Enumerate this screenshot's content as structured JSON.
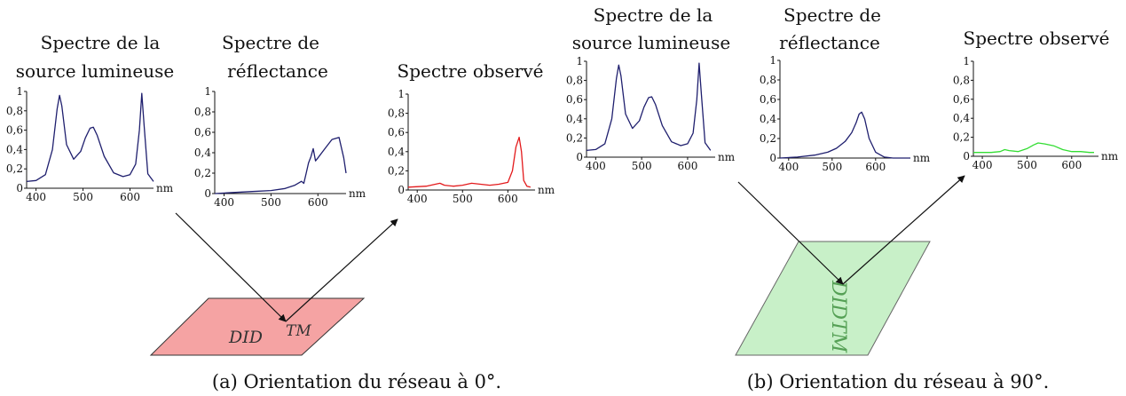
{
  "colors": {
    "source": "#1f1f6e",
    "reflectance": "#1f1f6e",
    "observed_a": "#e31a1c",
    "observed_b": "#33dd33",
    "surface_a_fill": "#f5a3a3",
    "surface_a_stroke": "#333333",
    "surface_b_fill": "#c8f0c8",
    "surface_b_stroke": "#666666"
  },
  "panels": [
    {
      "caption": "(a) Orientation du réseau à 0°.",
      "surface_mark": "DID",
      "surface_superscript": "TM",
      "charts": [
        {
          "id": "a-source",
          "title": [
            "Spectre de la",
            "source lumineuse"
          ],
          "unit": "nm"
        },
        {
          "id": "a-reflect",
          "title": [
            "Spectre de",
            "réflectance"
          ],
          "unit": "nm"
        },
        {
          "id": "a-observed",
          "title": [
            "Spectre observé"
          ],
          "unit": "nm"
        }
      ]
    },
    {
      "caption": "(b) Orientation du réseau à 90°.",
      "surface_mark": "DIDTM",
      "surface_superscript": "",
      "charts": [
        {
          "id": "b-source",
          "title": [
            "Spectre de la",
            "source lumineuse"
          ],
          "unit": "nm"
        },
        {
          "id": "b-reflect",
          "title": [
            "Spectre de",
            "réflectance"
          ],
          "unit": "nm"
        },
        {
          "id": "b-observed",
          "title": [
            "Spectre observé"
          ],
          "unit": "nm"
        }
      ]
    }
  ],
  "chart_data": [
    {
      "id": "a-source",
      "type": "line",
      "xlim": [
        380,
        650
      ],
      "ylim": [
        0,
        1
      ],
      "xticks": [
        400,
        500,
        600
      ],
      "yticks": [
        0,
        0.2,
        0.4,
        0.6,
        0.8,
        1
      ],
      "ytick_labels": [
        "0",
        "0,2",
        "0,4",
        "0,6",
        "0,8",
        "1"
      ],
      "x": [
        380,
        400,
        420,
        435,
        445,
        450,
        455,
        465,
        480,
        495,
        505,
        515,
        522,
        530,
        545,
        565,
        585,
        600,
        612,
        620,
        625,
        630,
        638,
        650
      ],
      "y": [
        0.07,
        0.08,
        0.14,
        0.4,
        0.82,
        0.96,
        0.85,
        0.45,
        0.3,
        0.38,
        0.52,
        0.62,
        0.63,
        0.55,
        0.33,
        0.16,
        0.12,
        0.14,
        0.25,
        0.6,
        0.98,
        0.65,
        0.15,
        0.07
      ]
    },
    {
      "id": "a-reflect",
      "type": "line",
      "xlim": [
        380,
        660
      ],
      "ylim": [
        0,
        1
      ],
      "xticks": [
        400,
        500,
        600
      ],
      "yticks": [
        0,
        0.2,
        0.4,
        0.6,
        0.8,
        1
      ],
      "ytick_labels": [
        "0",
        "0,2",
        "0,4",
        "0,6",
        "0,8",
        "1"
      ],
      "x": [
        380,
        420,
        460,
        500,
        530,
        550,
        565,
        570,
        575,
        580,
        585,
        590,
        595,
        600,
        615,
        630,
        645,
        655,
        660
      ],
      "y": [
        0.0,
        0.01,
        0.02,
        0.03,
        0.05,
        0.08,
        0.12,
        0.1,
        0.2,
        0.3,
        0.36,
        0.44,
        0.32,
        0.35,
        0.44,
        0.53,
        0.55,
        0.35,
        0.2
      ]
    },
    {
      "id": "a-observed",
      "type": "line",
      "xlim": [
        380,
        660
      ],
      "ylim": [
        0,
        1
      ],
      "xticks": [
        400,
        500,
        600
      ],
      "yticks": [
        0,
        0.2,
        0.4,
        0.6,
        0.8,
        1
      ],
      "ytick_labels": [
        "0",
        "0,2",
        "0,4",
        "0,6",
        "0,8",
        "1"
      ],
      "x": [
        380,
        420,
        440,
        450,
        460,
        480,
        500,
        520,
        540,
        560,
        580,
        600,
        610,
        618,
        625,
        630,
        635,
        642,
        650
      ],
      "y": [
        0.03,
        0.04,
        0.06,
        0.07,
        0.05,
        0.04,
        0.05,
        0.07,
        0.06,
        0.05,
        0.06,
        0.08,
        0.2,
        0.45,
        0.55,
        0.4,
        0.1,
        0.04,
        0.03
      ]
    },
    {
      "id": "b-source",
      "type": "line",
      "xlim": [
        380,
        660
      ],
      "ylim": [
        0,
        1
      ],
      "xticks": [
        400,
        500,
        600
      ],
      "yticks": [
        0,
        0.2,
        0.4,
        0.6,
        0.8,
        1
      ],
      "ytick_labels": [
        "0",
        "0,2",
        "0,4",
        "0,6",
        "0,8",
        "1"
      ],
      "x": [
        380,
        400,
        420,
        435,
        445,
        450,
        455,
        465,
        480,
        495,
        505,
        515,
        522,
        530,
        545,
        565,
        585,
        600,
        612,
        620,
        625,
        630,
        638,
        650
      ],
      "y": [
        0.07,
        0.08,
        0.14,
        0.4,
        0.82,
        0.96,
        0.85,
        0.45,
        0.3,
        0.38,
        0.52,
        0.62,
        0.63,
        0.55,
        0.33,
        0.16,
        0.12,
        0.14,
        0.25,
        0.6,
        0.98,
        0.65,
        0.15,
        0.07
      ]
    },
    {
      "id": "b-reflect",
      "type": "line",
      "xlim": [
        380,
        680
      ],
      "ylim": [
        0,
        1
      ],
      "xticks": [
        400,
        500,
        600
      ],
      "yticks": [
        0,
        0.2,
        0.4,
        0.6,
        0.8,
        1
      ],
      "ytick_labels": [
        "0",
        "0,2",
        "0,4",
        "0,6",
        "0,8",
        "1"
      ],
      "x": [
        380,
        420,
        460,
        490,
        510,
        530,
        545,
        555,
        562,
        568,
        575,
        585,
        600,
        620,
        640,
        660,
        680
      ],
      "y": [
        0.0,
        0.01,
        0.03,
        0.06,
        0.1,
        0.17,
        0.26,
        0.36,
        0.45,
        0.47,
        0.4,
        0.2,
        0.06,
        0.01,
        0.0,
        0.0,
        0.0
      ]
    },
    {
      "id": "b-observed",
      "type": "line",
      "xlim": [
        380,
        660
      ],
      "ylim": [
        0,
        1
      ],
      "xticks": [
        400,
        500,
        600
      ],
      "yticks": [
        0,
        0.2,
        0.4,
        0.6,
        0.8,
        1
      ],
      "ytick_labels": [
        "0",
        "0,2",
        "0,4",
        "0,6",
        "0,8",
        "1"
      ],
      "x": [
        380,
        420,
        440,
        450,
        460,
        480,
        500,
        515,
        525,
        540,
        560,
        580,
        600,
        620,
        640,
        650
      ],
      "y": [
        0.04,
        0.04,
        0.05,
        0.07,
        0.06,
        0.05,
        0.08,
        0.12,
        0.14,
        0.13,
        0.11,
        0.07,
        0.05,
        0.05,
        0.04,
        0.04
      ]
    }
  ]
}
